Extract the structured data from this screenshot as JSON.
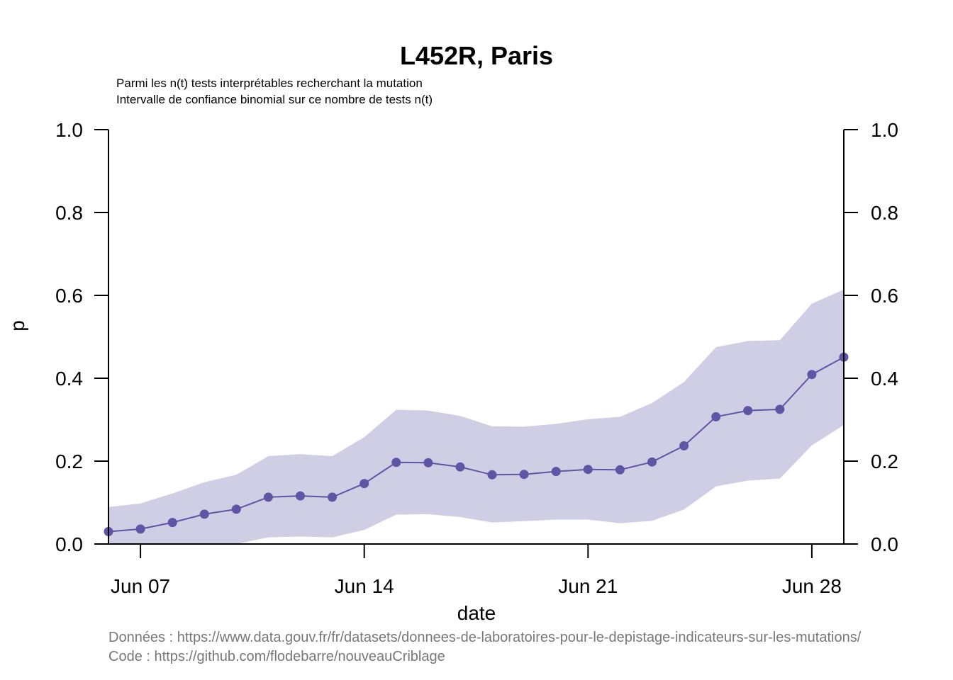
{
  "colors": {
    "series": "#5e55a4",
    "band": "#d0cee5",
    "source_text": "#777777"
  },
  "chart_data": {
    "type": "line",
    "title": "L452R, Paris",
    "subtitle_lines": [
      "Parmi les n(t) tests interprétables recherchant la mutation",
      "Intervalle de confiance binomial sur ce nombre de tests n(t)"
    ],
    "xlabel": "date",
    "ylabel": "p",
    "x_axis": {
      "type": "date",
      "range": [
        "2021-06-06",
        "2021-06-29"
      ],
      "ticks": [
        "2021-06-07",
        "2021-06-14",
        "2021-06-21",
        "2021-06-28"
      ],
      "tick_labels": [
        "Jun 07",
        "Jun 14",
        "Jun 21",
        "Jun 28"
      ]
    },
    "y_axis": {
      "range": [
        0,
        1
      ],
      "ticks": [
        0,
        0.2,
        0.4,
        0.6,
        0.8,
        1.0
      ],
      "tick_labels": [
        "0.0",
        "0.2",
        "0.4",
        "0.6",
        "0.8",
        "1.0"
      ],
      "right_axis_duplicate": true
    },
    "grid": false,
    "series": [
      {
        "x": [
          "2021-06-06",
          "2021-06-07",
          "2021-06-08",
          "2021-06-09",
          "2021-06-10",
          "2021-06-11",
          "2021-06-12",
          "2021-06-13",
          "2021-06-14",
          "2021-06-15",
          "2021-06-16",
          "2021-06-17",
          "2021-06-18",
          "2021-06-19",
          "2021-06-20",
          "2021-06-21",
          "2021-06-22",
          "2021-06-23",
          "2021-06-24",
          "2021-06-25",
          "2021-06-26",
          "2021-06-27",
          "2021-06-28",
          "2021-06-29"
        ],
        "values": [
          0.03,
          0.036,
          0.052,
          0.072,
          0.084,
          0.113,
          0.116,
          0.113,
          0.146,
          0.197,
          0.196,
          0.186,
          0.167,
          0.168,
          0.175,
          0.18,
          0.179,
          0.198,
          0.237,
          0.307,
          0.322,
          0.325,
          0.409,
          0.451
        ],
        "ci_lower": [
          0.0,
          0.0,
          0.0,
          0.0,
          0.0,
          0.016,
          0.018,
          0.016,
          0.034,
          0.071,
          0.072,
          0.065,
          0.052,
          0.055,
          0.059,
          0.059,
          0.05,
          0.056,
          0.083,
          0.139,
          0.153,
          0.158,
          0.238,
          0.287
        ],
        "ci_upper": [
          0.089,
          0.098,
          0.122,
          0.149,
          0.167,
          0.212,
          0.217,
          0.212,
          0.258,
          0.324,
          0.322,
          0.309,
          0.284,
          0.283,
          0.29,
          0.301,
          0.307,
          0.34,
          0.391,
          0.475,
          0.49,
          0.492,
          0.58,
          0.614
        ]
      }
    ]
  },
  "source": {
    "data_line": "Données : https://www.data.gouv.fr/fr/datasets/donnees-de-laboratoires-pour-le-depistage-indicateurs-sur-les-mutations/",
    "code_line": "Code : https://github.com/flodebarre/nouveauCriblage"
  }
}
